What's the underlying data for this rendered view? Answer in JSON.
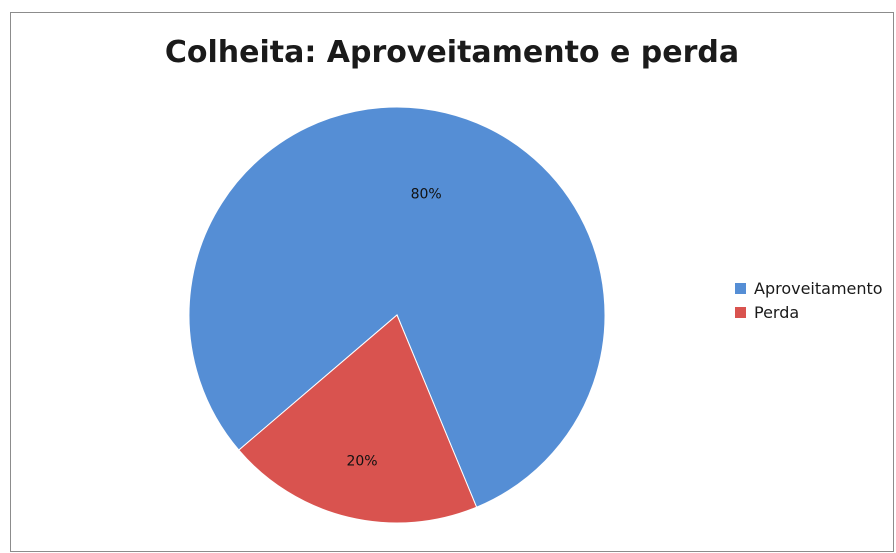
{
  "chart_data": {
    "type": "pie",
    "title": "Colheita: Aproveitamento e perda",
    "categories": [
      "Aproveitamento",
      "Perda"
    ],
    "values": [
      80,
      20
    ],
    "data_labels": [
      "80%",
      "20%"
    ],
    "colors": [
      "#558ed5",
      "#d9534f"
    ],
    "legend": {
      "position": "right",
      "entries": [
        "Aproveitamento",
        "Perda"
      ]
    }
  }
}
